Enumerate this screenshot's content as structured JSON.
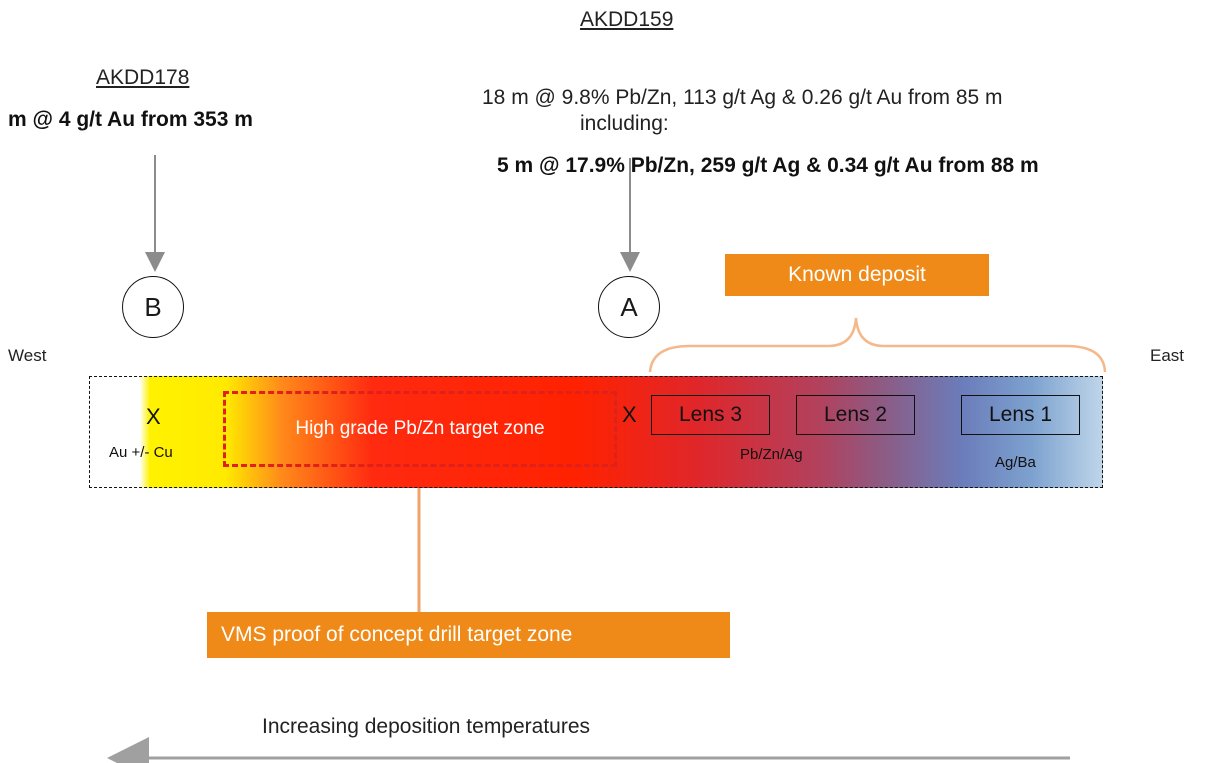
{
  "holes": {
    "b": {
      "name": "AKDD178",
      "result": "m @ 4 g/t Au from 353 m",
      "marker": "B"
    },
    "a": {
      "name": "AKDD159",
      "result_line1": "18 m @ 9.8% Pb/Zn, 113 g/t Ag & 0.26 g/t Au from 85 m",
      "result_line2": "including:",
      "result_line3": "5 m @ 17.9% Pb/Zn, 259 g/t Ag & 0.34 g/t Au from 88 m",
      "marker": "A"
    }
  },
  "directions": {
    "west": "West",
    "east": "East"
  },
  "known_deposit": "Known deposit",
  "band": {
    "x_left": "X",
    "au_cu": "Au +/- Cu",
    "target_zone": "High grade Pb/Zn target zone",
    "x_right": "X",
    "lenses": [
      "Lens 3",
      "Lens 2",
      "Lens 1"
    ],
    "pbznag": "Pb/Zn/Ag",
    "agba": "Ag/Ba"
  },
  "vms_label": "VMS proof of concept drill target zone",
  "temperature_label": "Increasing deposition temperatures",
  "colors": {
    "orange": "#ef8a19",
    "yellow": "#fff200",
    "red": "#ff2200",
    "blue": "#7da2cf",
    "arrow_gray": "#8c8c8c"
  }
}
